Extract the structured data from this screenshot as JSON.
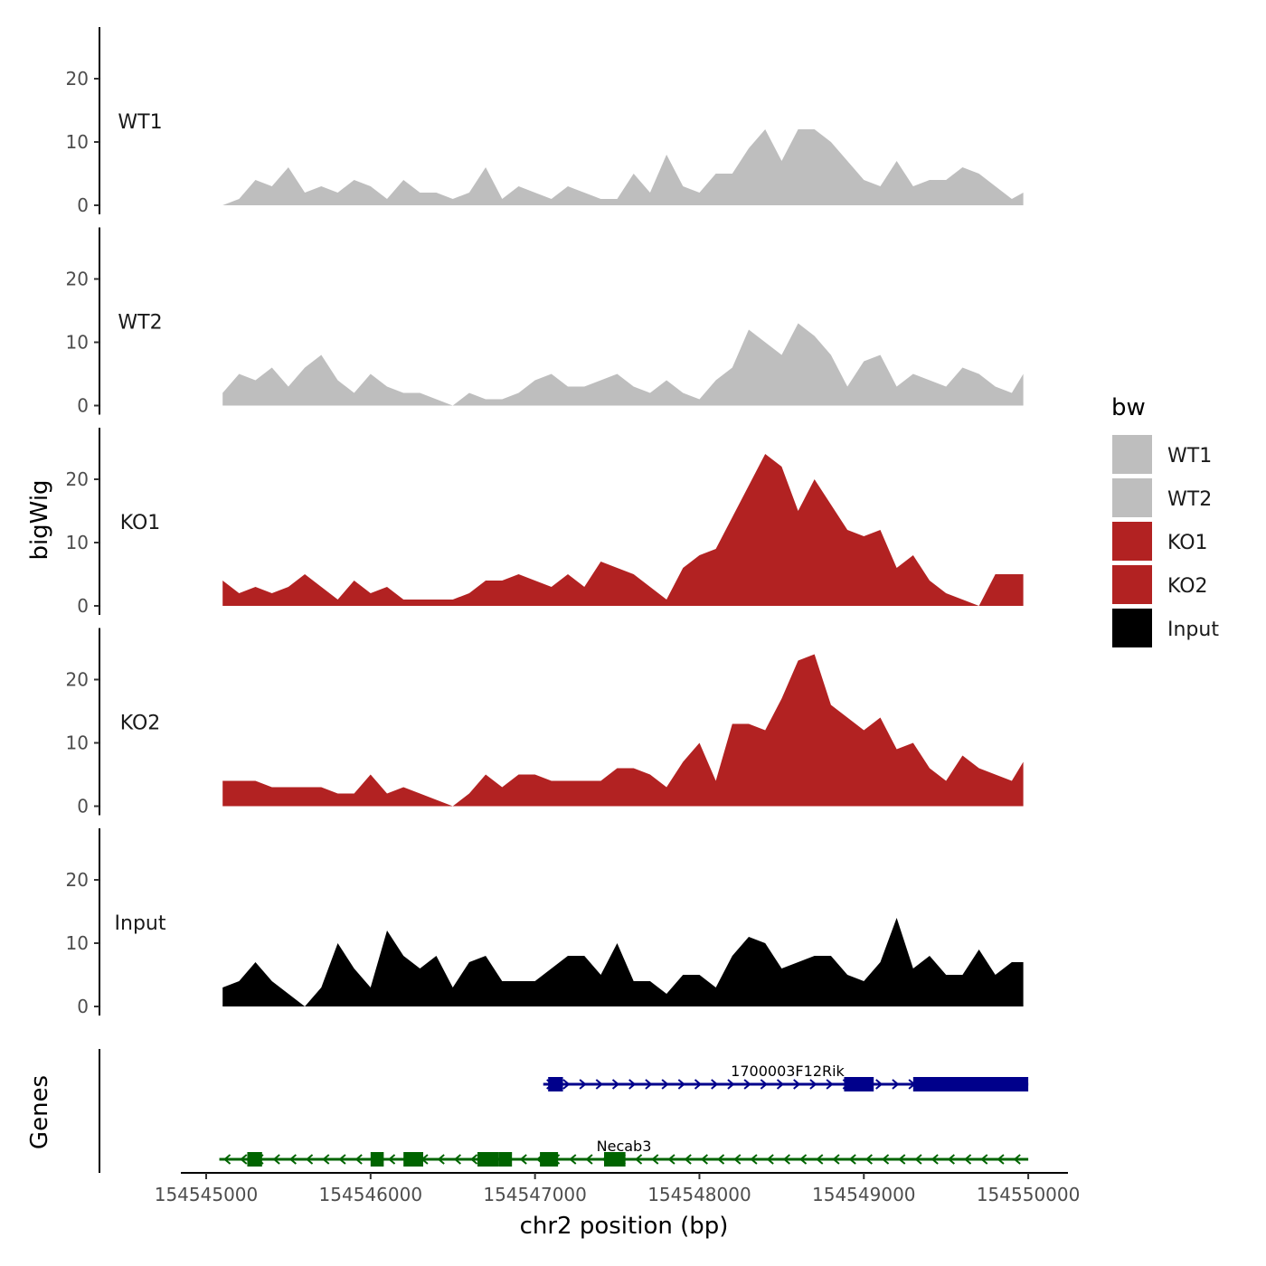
{
  "chart_data": {
    "type": "area",
    "title": "",
    "xlabel": "chr2 position (bp)",
    "ylabel": "bigWig",
    "genes_label": "Genes",
    "xlim": [
      154545000,
      154550000
    ],
    "ylim": [
      0,
      27
    ],
    "x_ticks": [
      154545000,
      154546000,
      154547000,
      154548000,
      154549000,
      154550000
    ],
    "x_tick_labels": [
      "154545000",
      "154546000",
      "154547000",
      "154548000",
      "154549000",
      "154550000"
    ],
    "y_ticks": [
      0,
      10,
      20
    ],
    "y_tick_labels": [
      "0",
      "10",
      "20"
    ],
    "x_start": 154545100,
    "x_step": 100,
    "grid": false,
    "legend": {
      "title": "bw",
      "placement": "right",
      "entries": [
        "WT1",
        "WT2",
        "KO1",
        "KO2",
        "Input"
      ]
    },
    "series": [
      {
        "name": "WT1",
        "color": "#BEBEBE",
        "values": [
          0,
          1,
          4,
          3,
          6,
          2,
          3,
          2,
          4,
          3,
          1,
          4,
          2,
          2,
          1,
          2,
          6,
          1,
          3,
          2,
          1,
          3,
          2,
          1,
          1,
          5,
          2,
          8,
          3,
          2,
          5,
          5,
          9,
          12,
          7,
          12,
          12,
          10,
          7,
          4,
          3,
          7,
          3,
          4,
          4,
          6,
          5,
          3,
          1,
          2
        ]
      },
      {
        "name": "WT2",
        "color": "#BEBEBE",
        "values": [
          2,
          5,
          4,
          6,
          3,
          6,
          8,
          4,
          2,
          5,
          3,
          2,
          2,
          1,
          0,
          2,
          1,
          1,
          2,
          4,
          5,
          3,
          3,
          4,
          5,
          3,
          2,
          4,
          2,
          1,
          4,
          6,
          12,
          10,
          8,
          13,
          11,
          8,
          3,
          7,
          8,
          3,
          5,
          4,
          3,
          6,
          5,
          3,
          2,
          5
        ]
      },
      {
        "name": "KO1",
        "color": "#B22222",
        "values": [
          4,
          2,
          3,
          2,
          3,
          5,
          3,
          1,
          4,
          2,
          3,
          1,
          1,
          1,
          1,
          2,
          4,
          4,
          5,
          4,
          3,
          5,
          3,
          7,
          6,
          5,
          3,
          1,
          6,
          8,
          9,
          14,
          19,
          24,
          22,
          15,
          20,
          16,
          12,
          11,
          12,
          6,
          8,
          4,
          2,
          1,
          0,
          5,
          5,
          5
        ]
      },
      {
        "name": "KO2",
        "color": "#B22222",
        "values": [
          4,
          4,
          4,
          3,
          3,
          3,
          3,
          2,
          2,
          5,
          2,
          3,
          2,
          1,
          0,
          2,
          5,
          3,
          5,
          5,
          4,
          4,
          4,
          4,
          6,
          6,
          5,
          3,
          7,
          10,
          4,
          13,
          13,
          12,
          17,
          23,
          24,
          16,
          14,
          12,
          14,
          9,
          10,
          6,
          4,
          8,
          6,
          5,
          4,
          7
        ]
      },
      {
        "name": "Input",
        "color": "#000000",
        "values": [
          3,
          4,
          7,
          4,
          2,
          0,
          3,
          10,
          6,
          3,
          12,
          8,
          6,
          8,
          3,
          7,
          8,
          4,
          4,
          4,
          6,
          8,
          8,
          5,
          10,
          4,
          4,
          2,
          5,
          5,
          3,
          8,
          11,
          10,
          6,
          7,
          8,
          8,
          5,
          4,
          7,
          14,
          6,
          8,
          5,
          5,
          9,
          5,
          7,
          7
        ]
      }
    ],
    "genes": [
      {
        "name": "1700003F12Rik",
        "strand": "+",
        "color": "#00008B",
        "start": 154547050,
        "end": 154550000,
        "exons": [
          [
            154547080,
            154547170
          ],
          [
            154548880,
            154549060
          ],
          [
            154549300,
            154550000
          ]
        ]
      },
      {
        "name": "Necab3",
        "strand": "-",
        "color": "#006400",
        "start": 154545080,
        "end": 154550000,
        "exons": [
          [
            154545250,
            154545340
          ],
          [
            154546000,
            154546080
          ],
          [
            154546200,
            154546320
          ],
          [
            154546650,
            154546780
          ],
          [
            154546780,
            154546860
          ],
          [
            154547030,
            154547140
          ],
          [
            154547420,
            154547550
          ]
        ]
      }
    ]
  }
}
